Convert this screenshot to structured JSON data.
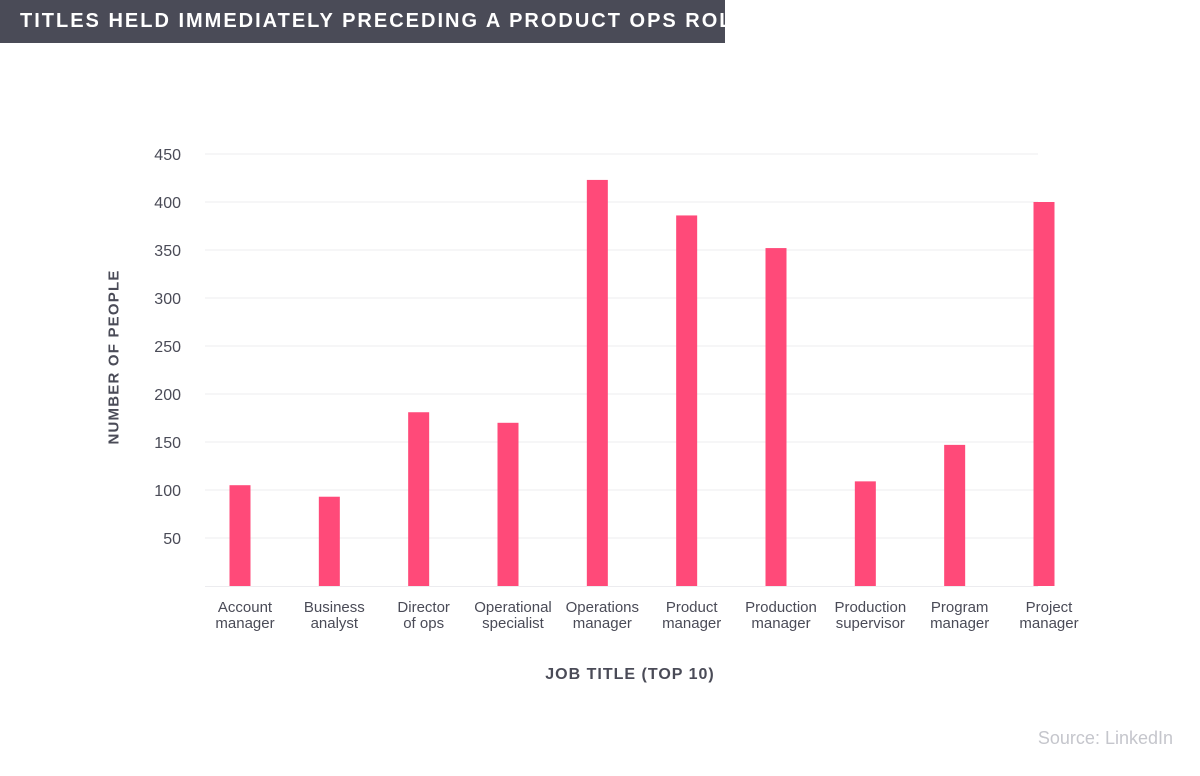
{
  "header": {
    "title": "TITLES HELD IMMEDIATELY PRECEDING A PRODUCT OPS ROLE"
  },
  "footer": {
    "source": "Source: LinkedIn"
  },
  "colors": {
    "banner_background": "#4a4b57",
    "bar": "#ff4a79",
    "text": "#4a4b57",
    "gridline": "#ececef",
    "source_text": "#c5c6cc"
  },
  "chart_data": {
    "type": "bar",
    "title": "TITLES HELD IMMEDIATELY PRECEDING A PRODUCT OPS ROLE",
    "xlabel": "JOB TITLE (TOP 10)",
    "ylabel": "NUMBER OF PEOPLE",
    "ylim": [
      0,
      450
    ],
    "yticks": [
      50,
      100,
      150,
      200,
      250,
      300,
      350,
      400,
      450
    ],
    "grid": true,
    "legend": "none",
    "categories": [
      "Account manager",
      "Business analyst",
      "Director of ops",
      "Operational specialist",
      "Operations manager",
      "Product manager",
      "Production manager",
      "Production supervisor",
      "Program manager",
      "Project manager"
    ],
    "category_lines": [
      [
        "Account",
        "manager"
      ],
      [
        "Business",
        "analyst"
      ],
      [
        "Director",
        "of ops"
      ],
      [
        "Operational",
        "specialist"
      ],
      [
        "Operations",
        "manager"
      ],
      [
        "Product",
        "manager"
      ],
      [
        "Production",
        "manager"
      ],
      [
        "Production",
        "supervisor"
      ],
      [
        "Program",
        "manager"
      ],
      [
        "Project",
        "manager"
      ]
    ],
    "values": [
      105,
      93,
      181,
      170,
      423,
      386,
      352,
      109,
      147,
      400
    ]
  }
}
